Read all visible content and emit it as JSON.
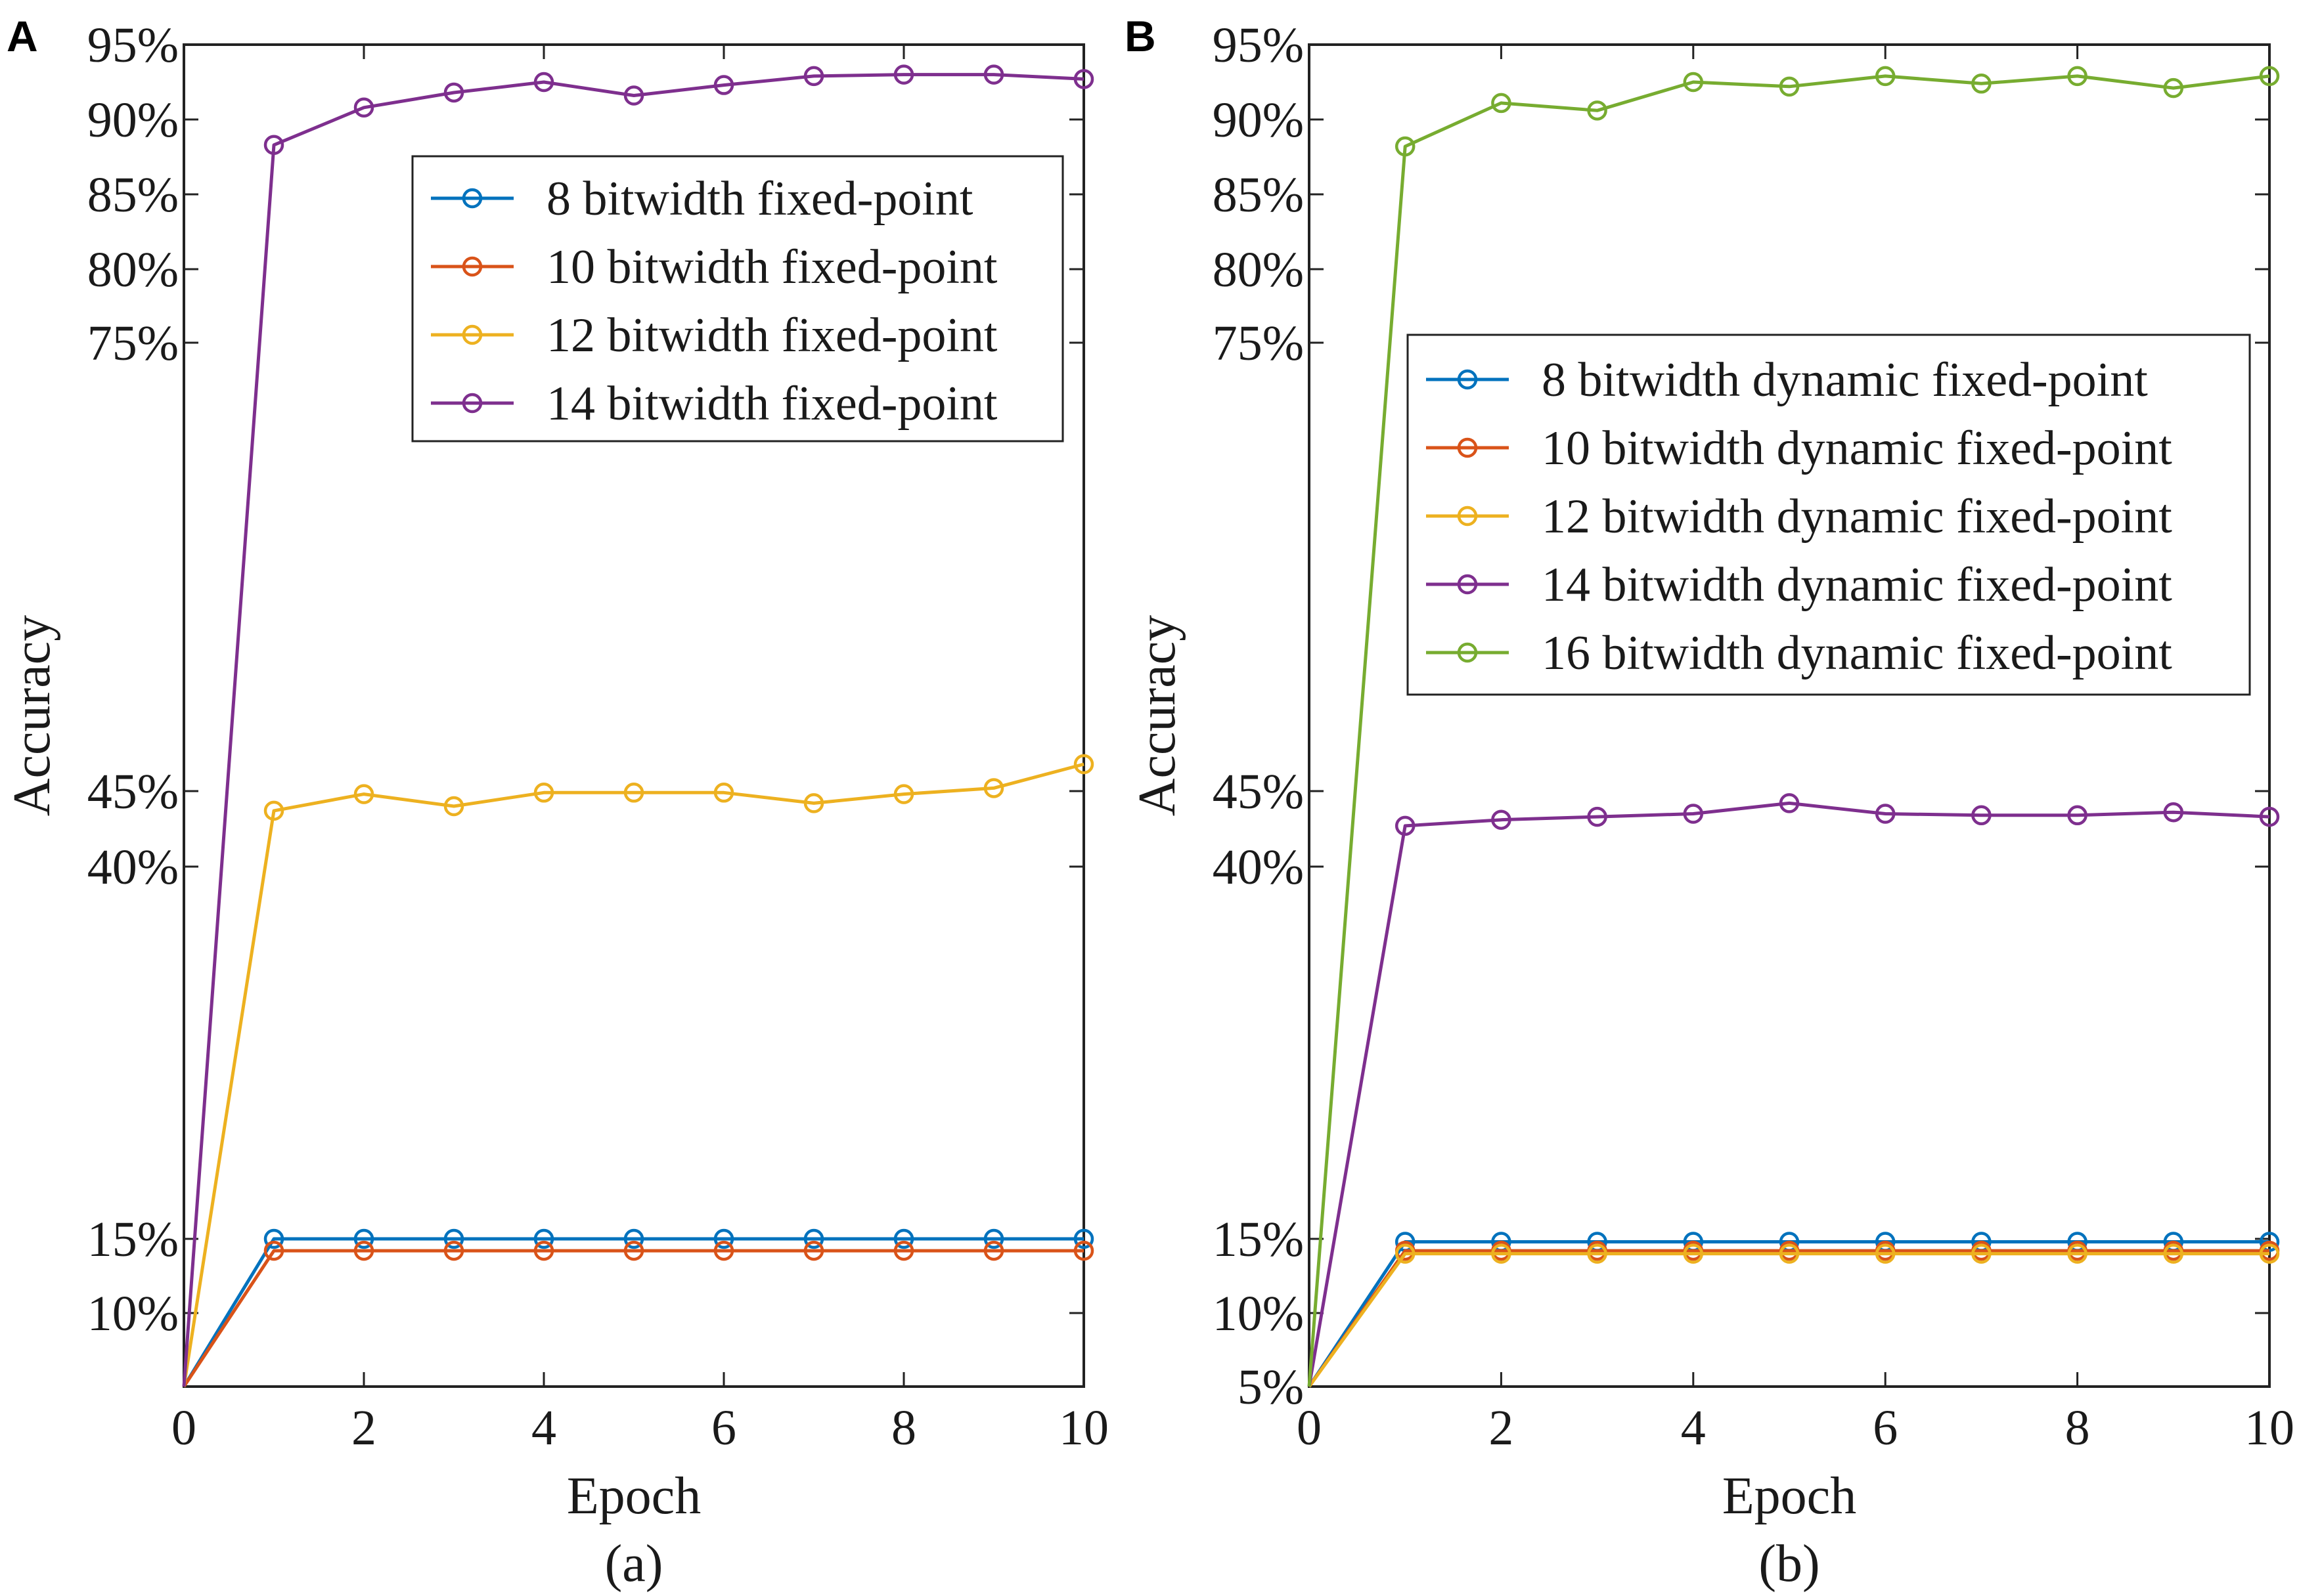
{
  "chart_data": [
    {
      "type": "line",
      "panel_label": "A",
      "subtitle": "(a)",
      "xlabel": "Epoch",
      "ylabel": "Accuracy",
      "xlim": [
        0,
        10
      ],
      "ylim": [
        5,
        95
      ],
      "x_ticks": [
        {
          "value": 0,
          "label": "0"
        },
        {
          "value": 2,
          "label": "2"
        },
        {
          "value": 4,
          "label": "4"
        },
        {
          "value": 6,
          "label": "6"
        },
        {
          "value": 8,
          "label": "8"
        },
        {
          "value": 10,
          "label": "10"
        }
      ],
      "y_ticks": [
        {
          "value": 10,
          "label": "10%"
        },
        {
          "value": 15,
          "label": "15%"
        },
        {
          "value": 40,
          "label": "40%"
        },
        {
          "value": 45,
          "label": "45%"
        },
        {
          "value": 75,
          "label": "75%"
        },
        {
          "value": 80,
          "label": "80%"
        },
        {
          "value": 85,
          "label": "85%"
        },
        {
          "value": 90,
          "label": "90%"
        },
        {
          "value": 95,
          "label": "95%"
        }
      ],
      "legend_position": "upper-right",
      "x": [
        0,
        1,
        2,
        3,
        4,
        5,
        6,
        7,
        8,
        9,
        10
      ],
      "series": [
        {
          "name": "8 bitwidth fixed-point",
          "color": "#0072BD",
          "values": [
            5,
            15,
            15,
            15,
            15,
            15,
            15,
            15,
            15,
            15,
            15
          ]
        },
        {
          "name": "10 bitwidth fixed-point",
          "color": "#D95319",
          "values": [
            5,
            14.2,
            14.2,
            14.2,
            14.2,
            14.2,
            14.2,
            14.2,
            14.2,
            14.2,
            14.2
          ]
        },
        {
          "name": "12 bitwidth fixed-point",
          "color": "#EDB120",
          "values": [
            5,
            43.7,
            44.8,
            44,
            44.9,
            44.9,
            44.9,
            44.2,
            44.8,
            45.2,
            46.8
          ]
        },
        {
          "name": "14 bitwidth fixed-point",
          "color": "#7E2F8E",
          "values": [
            5,
            88.3,
            90.8,
            91.8,
            92.5,
            91.6,
            92.3,
            92.9,
            93,
            93,
            92.7
          ]
        }
      ]
    },
    {
      "type": "line",
      "panel_label": "B",
      "subtitle": "(b)",
      "xlabel": "Epoch",
      "ylabel": "Accuracy",
      "xlim": [
        0,
        10
      ],
      "ylim": [
        5,
        95
      ],
      "x_ticks": [
        {
          "value": 0,
          "label": "0"
        },
        {
          "value": 2,
          "label": "2"
        },
        {
          "value": 4,
          "label": "4"
        },
        {
          "value": 6,
          "label": "6"
        },
        {
          "value": 8,
          "label": "8"
        },
        {
          "value": 10,
          "label": "10"
        }
      ],
      "y_ticks": [
        {
          "value": 5,
          "label": "5%"
        },
        {
          "value": 10,
          "label": "10%"
        },
        {
          "value": 15,
          "label": "15%"
        },
        {
          "value": 40,
          "label": "40%"
        },
        {
          "value": 45,
          "label": "45%"
        },
        {
          "value": 75,
          "label": "75%"
        },
        {
          "value": 80,
          "label": "80%"
        },
        {
          "value": 85,
          "label": "85%"
        },
        {
          "value": 90,
          "label": "90%"
        },
        {
          "value": 95,
          "label": "95%"
        }
      ],
      "legend_position": "center-right",
      "x": [
        0,
        1,
        2,
        3,
        4,
        5,
        6,
        7,
        8,
        9,
        10
      ],
      "series": [
        {
          "name": "8 bitwidth dynamic fixed-point",
          "color": "#0072BD",
          "values": [
            5,
            14.8,
            14.8,
            14.8,
            14.8,
            14.8,
            14.8,
            14.8,
            14.8,
            14.8,
            14.8
          ]
        },
        {
          "name": "10 bitwidth dynamic fixed-point",
          "color": "#D95319",
          "values": [
            5,
            14.2,
            14.2,
            14.2,
            14.2,
            14.2,
            14.2,
            14.2,
            14.2,
            14.2,
            14.2
          ]
        },
        {
          "name": "12 bitwidth dynamic fixed-point",
          "color": "#EDB120",
          "values": [
            5,
            14,
            14,
            14,
            14,
            14,
            14,
            14,
            14,
            14,
            14
          ]
        },
        {
          "name": "14 bitwidth dynamic fixed-point",
          "color": "#7E2F8E",
          "values": [
            5,
            42.7,
            43.1,
            43.3,
            43.5,
            44.2,
            43.5,
            43.4,
            43.4,
            43.6,
            43.3
          ]
        },
        {
          "name": "16 bitwidth dynamic fixed-point",
          "color": "#77AC30",
          "values": [
            5,
            88.2,
            91.1,
            90.6,
            92.5,
            92.2,
            92.9,
            92.4,
            92.9,
            92.1,
            92.9
          ]
        }
      ]
    }
  ]
}
